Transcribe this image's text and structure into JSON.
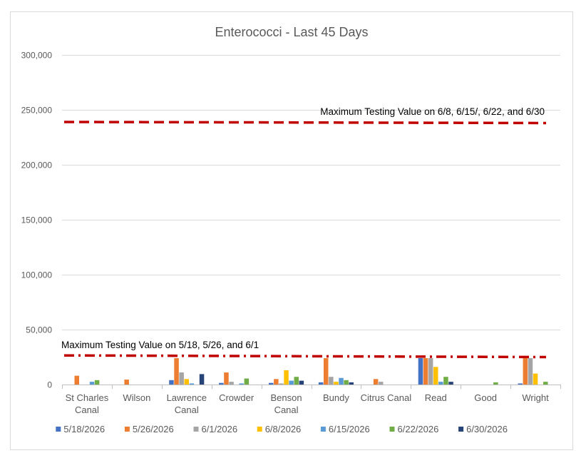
{
  "chart_data": {
    "type": "bar",
    "title": "Enterococci - Last 45 Days",
    "xlabel": "",
    "ylabel": "",
    "ylim": [
      0,
      300000
    ],
    "yticks": [
      0,
      50000,
      100000,
      150000,
      200000,
      250000,
      300000
    ],
    "ytick_labels": [
      "0",
      "50,000",
      "100,000",
      "150,000",
      "200,000",
      "250,000",
      "300,000"
    ],
    "grid": true,
    "legend_position": "bottom",
    "categories": [
      [
        "St Charles",
        "Canal"
      ],
      [
        "Wilson"
      ],
      [
        "Lawrence",
        "Canal"
      ],
      [
        "Crowder"
      ],
      [
        "Benson",
        "Canal"
      ],
      [
        "Bundy"
      ],
      [
        "Citrus Canal"
      ],
      [
        "Read"
      ],
      [
        "Good"
      ],
      [
        "Wright"
      ]
    ],
    "series": [
      {
        "name": "5/18/2026",
        "color": "#4472c4",
        "values": [
          0,
          0,
          4000,
          1500,
          1500,
          2000,
          0,
          24000,
          0,
          1000
        ]
      },
      {
        "name": "5/26/2026",
        "color": "#ed7d31",
        "values": [
          8000,
          4500,
          24000,
          11000,
          5000,
          24000,
          5000,
          24000,
          0,
          24000
        ]
      },
      {
        "name": "6/1/2026",
        "color": "#a5a5a5",
        "values": [
          0,
          0,
          11000,
          2500,
          1000,
          7000,
          2500,
          24000,
          0,
          24000
        ]
      },
      {
        "name": "6/8/2026",
        "color": "#ffc000",
        "values": [
          0,
          0,
          5000,
          0,
          13000,
          2500,
          0,
          16000,
          0,
          10000
        ]
      },
      {
        "name": "6/15/2026",
        "color": "#5b9bd5",
        "values": [
          2500,
          0,
          1000,
          1000,
          3500,
          6000,
          0,
          2500,
          0,
          0
        ]
      },
      {
        "name": "6/22/2026",
        "color": "#70ad47",
        "values": [
          4000,
          0,
          0,
          5500,
          7000,
          4000,
          0,
          7000,
          2000,
          2500
        ]
      },
      {
        "name": "6/30/2026",
        "color": "#264478",
        "values": [
          0,
          0,
          9500,
          0,
          3500,
          2000,
          0,
          2500,
          0,
          0
        ]
      }
    ],
    "reference_lines": [
      {
        "label": "Maximum Testing Value on 6/8, 6/15/, 6/22, and 6/30",
        "y_start": 239000,
        "y_end": 238000,
        "color": "#c00000",
        "style": "dash"
      },
      {
        "label": "Maximum Testing Value on 5/18, 5/26, and 6/1",
        "y_start": 26500,
        "y_end": 25000,
        "color": "#c00000",
        "style": "dash-dot"
      }
    ]
  }
}
